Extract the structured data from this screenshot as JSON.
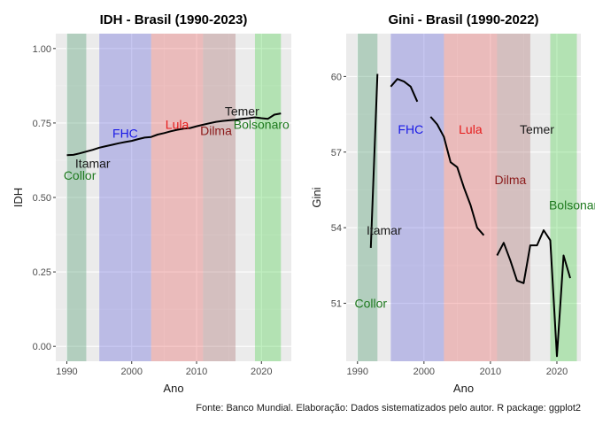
{
  "caption": "Fonte: Banco Mundial. Elaboração: Dados sistematizados pelo autor. R package: ggplot2",
  "chart_data": [
    {
      "type": "line",
      "title": "IDH - Brasil (1990-2023)",
      "xlabel": "Ano",
      "ylabel": "IDH",
      "xlim": [
        1988.3,
        1990.0
      ],
      "ylim": [
        -0.05,
        1.05
      ],
      "xticks": [
        1990,
        2000,
        2010,
        2020
      ],
      "xtick_labels": [
        "1990",
        "2000",
        "2010",
        "2020"
      ],
      "yticks": [
        0,
        0.25,
        0.5,
        0.75,
        1
      ],
      "ytick_labels": [
        "0.00",
        "0.25",
        "0.50",
        "0.75",
        "1.00"
      ],
      "periods": [
        {
          "name": "Collor",
          "start": 1990,
          "end": 1993,
          "color": "#2e8b57",
          "label_year": 1992,
          "label_value": 0.575
        },
        {
          "name": "Itamar",
          "start": 1993,
          "end": 1995,
          "color": "#bdbdbd",
          "label_year": 1994,
          "label_value": 0.615
        },
        {
          "name": "FHC",
          "start": 1995,
          "end": 2003,
          "color": "#4b4bd6",
          "label_year": 1999,
          "label_value": 0.715
        },
        {
          "name": "Lula",
          "start": 2003,
          "end": 2011,
          "color": "#e84c4c",
          "label_year": 2007,
          "label_value": 0.745
        },
        {
          "name": "Dilma",
          "start": 2011,
          "end": 2016,
          "color": "#a05a5a",
          "label_year": 2013,
          "label_value": 0.725
        },
        {
          "name": "Temer",
          "start": 2016,
          "end": 2019,
          "color": "#bdbdbd",
          "label_year": 2017,
          "label_value": 0.79
        },
        {
          "name": "Bolsonaro",
          "start": 2019,
          "end": 2023,
          "color": "#32cd32",
          "label_year": 2020,
          "label_value": 0.745
        }
      ],
      "label_colors": {
        "Collor": "#1f7a1f",
        "Itamar": "#1a1a1a",
        "FHC": "#1a1ae6",
        "Lula": "#e61a1a",
        "Dilma": "#8b1a1a",
        "Temer": "#1a1a1a",
        "Bolsonaro": "#1f7a1f"
      },
      "series": [
        {
          "x": [
            1990,
            1991,
            1992,
            1993,
            1994,
            1995,
            1996,
            1997,
            1998,
            1999,
            2000,
            2001,
            2002,
            2003,
            2004,
            2005,
            2006,
            2007,
            2008,
            2009,
            2010,
            2011,
            2012,
            2013,
            2014,
            2015,
            2016,
            2017,
            2018,
            2019,
            2020,
            2021,
            2022,
            2023
          ],
          "values": [
            0.642,
            0.643,
            0.648,
            0.654,
            0.66,
            0.667,
            0.672,
            0.677,
            0.682,
            0.686,
            0.69,
            0.696,
            0.701,
            0.703,
            0.711,
            0.716,
            0.722,
            0.727,
            0.731,
            0.733,
            0.739,
            0.744,
            0.749,
            0.754,
            0.757,
            0.759,
            0.761,
            0.764,
            0.766,
            0.769,
            0.766,
            0.764,
            0.778,
            0.782
          ]
        }
      ]
    },
    {
      "type": "line",
      "title": "Gini - Brasil (1990-2022)",
      "xlabel": "Ano",
      "ylabel": "Gini",
      "xlim": [
        1988.3,
        2023.6
      ],
      "ylim": [
        48.7,
        61.7
      ],
      "xticks": [
        1990,
        2000,
        2010,
        2020
      ],
      "xtick_labels": [
        "1990",
        "2000",
        "2010",
        "2020"
      ],
      "yticks": [
        51,
        54,
        57,
        60
      ],
      "ytick_labels": [
        "51",
        "54",
        "57",
        "60"
      ],
      "periods": [
        {
          "name": "Collor",
          "start": 1990,
          "end": 1993,
          "color": "#2e8b57",
          "label_year": 1992,
          "label_value": 51.0
        },
        {
          "name": "Itamar",
          "start": 1993,
          "end": 1995,
          "color": "#bdbdbd",
          "label_year": 1994,
          "label_value": 53.9
        },
        {
          "name": "FHC",
          "start": 1995,
          "end": 2003,
          "color": "#4b4bd6",
          "label_year": 1998,
          "label_value": 57.9
        },
        {
          "name": "Lula",
          "start": 2003,
          "end": 2011,
          "color": "#e84c4c",
          "label_year": 2007,
          "label_value": 57.9
        },
        {
          "name": "Dilma",
          "start": 2011,
          "end": 2016,
          "color": "#a05a5a",
          "label_year": 2013,
          "label_value": 55.9
        },
        {
          "name": "Temer",
          "start": 2016,
          "end": 2019,
          "color": "#bdbdbd",
          "label_year": 2017,
          "label_value": 57.9
        },
        {
          "name": "Bolsonaro",
          "start": 2019,
          "end": 2023,
          "color": "#32cd32",
          "label_year": 2023,
          "label_value": 54.9
        }
      ],
      "label_colors": {
        "Collor": "#1f7a1f",
        "Itamar": "#1a1a1a",
        "FHC": "#1a1ae6",
        "Lula": "#e61a1a",
        "Dilma": "#8b1a1a",
        "Temer": "#1a1a1a",
        "Bolsonaro": "#1f7a1f"
      },
      "series": [
        {
          "segments": [
            {
              "x": [
                1992,
                1993
              ],
              "values": [
                53.2,
                60.1
              ]
            },
            {
              "x": [
                1995,
                1996,
                1997,
                1998,
                1999
              ],
              "values": [
                59.6,
                59.9,
                59.8,
                59.6,
                59.0
              ]
            },
            {
              "x": [
                2001,
                2002,
                2003,
                2004,
                2005,
                2006,
                2007,
                2008,
                2009
              ],
              "values": [
                58.4,
                58.1,
                57.6,
                56.6,
                56.4,
                55.6,
                54.9,
                54.0,
                53.7
              ]
            },
            {
              "x": [
                2011,
                2012,
                2013,
                2014,
                2015,
                2016,
                2017,
                2018,
                2019,
                2020,
                2021,
                2022
              ],
              "values": [
                52.9,
                53.4,
                52.7,
                51.9,
                51.8,
                53.3,
                53.3,
                53.9,
                53.5,
                48.9,
                52.9,
                52.0
              ]
            }
          ]
        }
      ]
    }
  ]
}
